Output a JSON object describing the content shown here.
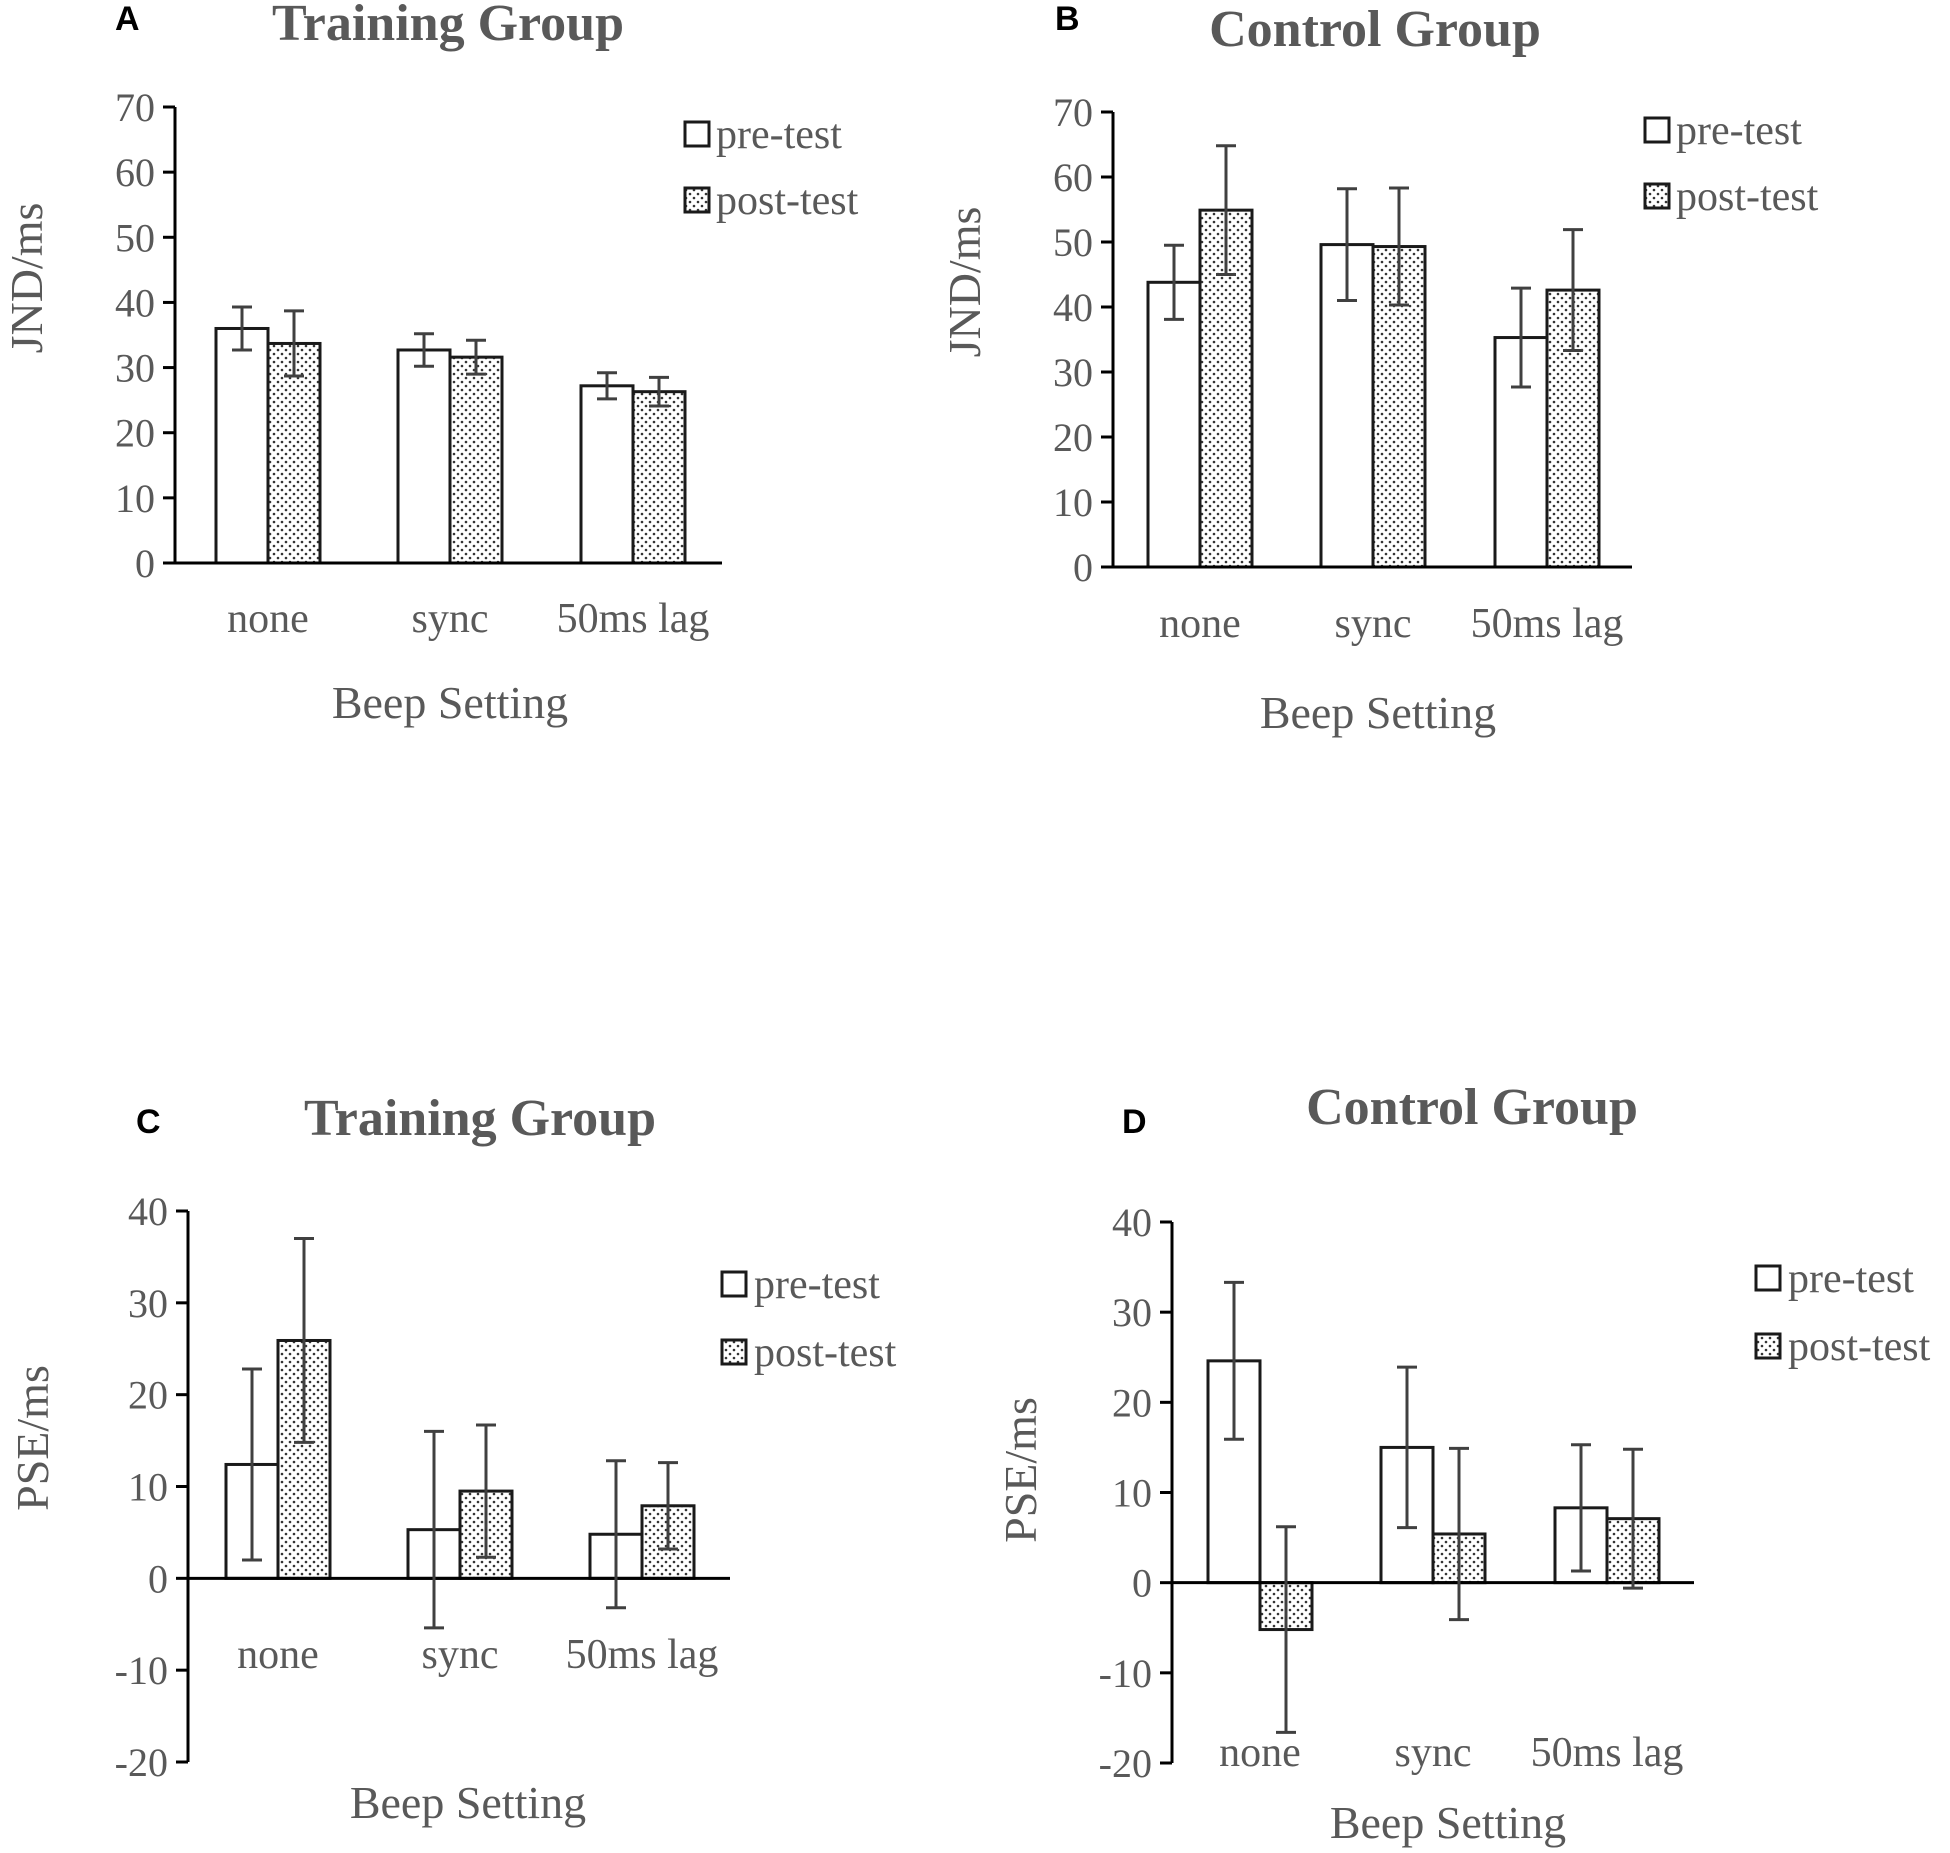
{
  "colors": {
    "axis": "#000000",
    "bar_stroke": "#1a1a1a",
    "error": "#404040",
    "text": "#595959",
    "dot": "#333333"
  },
  "chart_data": [
    {
      "id": "A",
      "type": "bar",
      "panel_label": "A",
      "title": "Training Group",
      "xlabel": "Beep Setting",
      "ylabel": "JND/ms",
      "categories": [
        "none",
        "sync",
        "50ms lag"
      ],
      "ylim": [
        0,
        70
      ],
      "yticks": [
        0,
        10,
        20,
        30,
        40,
        50,
        60,
        70
      ],
      "legend_position": "top-right",
      "series": [
        {
          "name": "pre-test",
          "pattern": "solid-white",
          "values": [
            36,
            32.7,
            27.2
          ],
          "err": [
            3.3,
            2.5,
            2
          ]
        },
        {
          "name": "post-test",
          "pattern": "dotted",
          "values": [
            33.7,
            31.6,
            26.3
          ],
          "err": [
            5,
            2.6,
            2.2
          ]
        }
      ]
    },
    {
      "id": "B",
      "type": "bar",
      "panel_label": "B",
      "title": "Control Group",
      "xlabel": "Beep Setting",
      "ylabel": "JND/ms",
      "categories": [
        "none",
        "sync",
        "50ms lag"
      ],
      "ylim": [
        0,
        70
      ],
      "yticks": [
        0,
        10,
        20,
        30,
        40,
        50,
        60,
        70
      ],
      "legend_position": "top-right",
      "series": [
        {
          "name": "pre-test",
          "pattern": "solid-white",
          "values": [
            43.8,
            49.6,
            35.3
          ],
          "err": [
            5.7,
            8.6,
            7.6
          ]
        },
        {
          "name": "post-test",
          "pattern": "dotted",
          "values": [
            54.9,
            49.3,
            42.6
          ],
          "err": [
            9.9,
            9,
            9.3
          ]
        }
      ]
    },
    {
      "id": "C",
      "type": "bar",
      "panel_label": "C",
      "title": "Training Group",
      "xlabel": "Beep Setting",
      "ylabel": "PSE/ms",
      "categories": [
        "none",
        "sync",
        "50ms lag"
      ],
      "ylim": [
        -20,
        40
      ],
      "yticks": [
        -20,
        -10,
        0,
        10,
        20,
        30,
        40
      ],
      "legend_position": "top-right",
      "series": [
        {
          "name": "pre-test",
          "pattern": "solid-white",
          "values": [
            12.4,
            5.3,
            4.8
          ],
          "err": [
            10.4,
            10.7,
            8
          ]
        },
        {
          "name": "post-test",
          "pattern": "dotted",
          "values": [
            25.9,
            9.5,
            7.9
          ],
          "err": [
            11.1,
            7.2,
            4.7
          ]
        }
      ]
    },
    {
      "id": "D",
      "type": "bar",
      "panel_label": "D",
      "title": "Control Group",
      "xlabel": "Beep Setting",
      "ylabel": "PSE/ms",
      "categories": [
        "none",
        "sync",
        "50ms lag"
      ],
      "ylim": [
        -20,
        40
      ],
      "yticks": [
        -20,
        -10,
        0,
        10,
        20,
        30,
        40
      ],
      "legend_position": "top-right",
      "series": [
        {
          "name": "pre-test",
          "pattern": "solid-white",
          "values": [
            24.6,
            15,
            8.3
          ],
          "err": [
            8.7,
            8.9,
            7
          ]
        },
        {
          "name": "post-test",
          "pattern": "dotted",
          "values": [
            -5.2,
            5.4,
            7.1
          ],
          "err": [
            11.4,
            9.5,
            7.7
          ]
        }
      ]
    }
  ]
}
